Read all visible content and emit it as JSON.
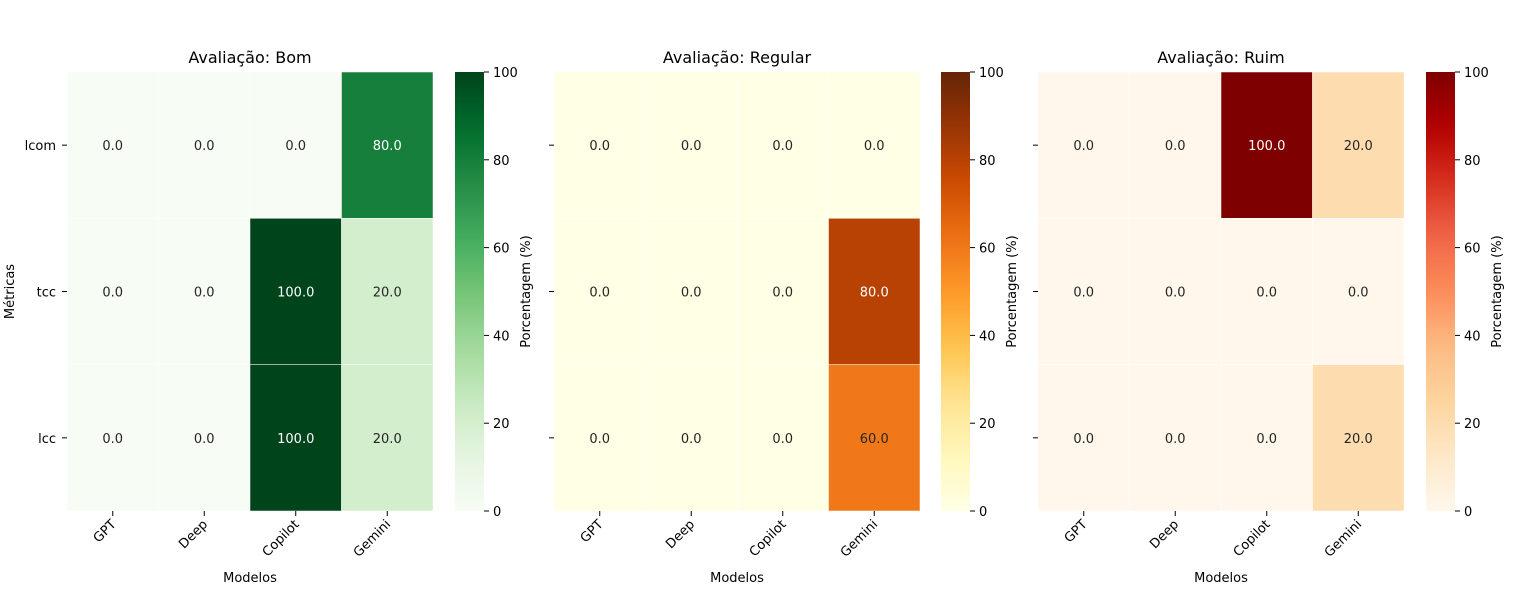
{
  "chart_data": [
    {
      "type": "heatmap",
      "title": "Avaliação: Bom",
      "xlabel": "Modelos",
      "ylabel": "Métricas",
      "x_categories": [
        "GPT",
        "Deep",
        "Copilot",
        "Gemini"
      ],
      "y_categories": [
        "lcom",
        "tcc",
        "lcc"
      ],
      "values": [
        [
          0.0,
          0.0,
          0.0,
          80.0
        ],
        [
          0.0,
          0.0,
          100.0,
          20.0
        ],
        [
          0.0,
          0.0,
          100.0,
          20.0
        ]
      ],
      "value_labels": [
        [
          "0.0",
          "0.0",
          "0.0",
          "80.0"
        ],
        [
          "0.0",
          "0.0",
          "100.0",
          "20.0"
        ],
        [
          "0.0",
          "0.0",
          "100.0",
          "20.0"
        ]
      ],
      "colormap": "Greens",
      "colorbar": {
        "label": "Porcentagem (%)",
        "range": [
          0,
          100
        ],
        "ticks": [
          "0",
          "20",
          "40",
          "60",
          "80",
          "100"
        ]
      }
    },
    {
      "type": "heatmap",
      "title": "Avaliação: Regular",
      "xlabel": "Modelos",
      "ylabel": "",
      "x_categories": [
        "GPT",
        "Deep",
        "Copilot",
        "Gemini"
      ],
      "y_categories": [
        "lcom",
        "tcc",
        "lcc"
      ],
      "values": [
        [
          0.0,
          0.0,
          0.0,
          0.0
        ],
        [
          0.0,
          0.0,
          0.0,
          80.0
        ],
        [
          0.0,
          0.0,
          0.0,
          60.0
        ]
      ],
      "value_labels": [
        [
          "0.0",
          "0.0",
          "0.0",
          "0.0"
        ],
        [
          "0.0",
          "0.0",
          "0.0",
          "80.0"
        ],
        [
          "0.0",
          "0.0",
          "0.0",
          "60.0"
        ]
      ],
      "colormap": "YlOrBr",
      "colorbar": {
        "label": "Porcentagem (%)",
        "range": [
          0,
          100
        ],
        "ticks": [
          "0",
          "20",
          "40",
          "60",
          "80",
          "100"
        ]
      }
    },
    {
      "type": "heatmap",
      "title": "Avaliação: Ruim",
      "xlabel": "Modelos",
      "ylabel": "",
      "x_categories": [
        "GPT",
        "Deep",
        "Copilot",
        "Gemini"
      ],
      "y_categories": [
        "lcom",
        "tcc",
        "lcc"
      ],
      "values": [
        [
          0.0,
          0.0,
          100.0,
          20.0
        ],
        [
          0.0,
          0.0,
          0.0,
          0.0
        ],
        [
          0.0,
          0.0,
          0.0,
          20.0
        ]
      ],
      "value_labels": [
        [
          "0.0",
          "0.0",
          "100.0",
          "20.0"
        ],
        [
          "0.0",
          "0.0",
          "0.0",
          "0.0"
        ],
        [
          "0.0",
          "0.0",
          "0.0",
          "20.0"
        ]
      ],
      "colormap": "OrRd",
      "colorbar": {
        "label": "Porcentagem (%)",
        "range": [
          0,
          100
        ],
        "ticks": [
          "0",
          "20",
          "40",
          "60",
          "80",
          "100"
        ]
      }
    }
  ]
}
